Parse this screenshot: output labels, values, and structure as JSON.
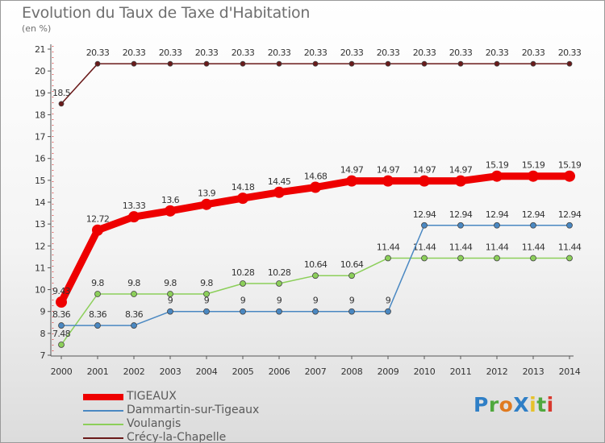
{
  "title": "Evolution du Taux de Taxe d'Habitation",
  "subtitle": "(en %)",
  "logo": {
    "text": "ProXiti",
    "letters": [
      {
        "ch": "P",
        "color": "#2f7fc6"
      },
      {
        "ch": "r",
        "color": "#4fa83d"
      },
      {
        "ch": "o",
        "color": "#e07a1f"
      },
      {
        "ch": "X",
        "color": "#2f7fc6"
      },
      {
        "ch": "i",
        "color": "#e6c12a"
      },
      {
        "ch": "t",
        "color": "#4fa83d"
      },
      {
        "ch": "i",
        "color": "#d83a2e"
      }
    ]
  },
  "chart_data": {
    "type": "line",
    "x": [
      2000,
      2001,
      2002,
      2003,
      2004,
      2005,
      2006,
      2007,
      2008,
      2009,
      2010,
      2011,
      2012,
      2013,
      2014
    ],
    "ylim": [
      7,
      21
    ],
    "yticks": [
      7,
      8,
      9,
      10,
      11,
      12,
      13,
      14,
      15,
      16,
      17,
      18,
      19,
      20,
      21
    ],
    "grid": false,
    "legend_position": "bottom-left",
    "series": [
      {
        "name": "Crécy-la-Chapelle",
        "color": "#6a1a1a",
        "width": 1.5,
        "marker": 3,
        "values": [
          18.5,
          20.33,
          20.33,
          20.33,
          20.33,
          20.33,
          20.33,
          20.33,
          20.33,
          20.33,
          20.33,
          20.33,
          20.33,
          20.33,
          20.33
        ],
        "labels": [
          "18.5",
          "20.33",
          "20.33",
          "20.33",
          "20.33",
          "20.33",
          "20.33",
          "20.33",
          "20.33",
          "20.33",
          "20.33",
          "20.33",
          "20.33",
          "20.33",
          "20.33"
        ]
      },
      {
        "name": "Voulangis",
        "color": "#8ccf5a",
        "width": 1.5,
        "marker": 3.5,
        "values": [
          7.48,
          9.8,
          9.8,
          9.8,
          9.8,
          10.28,
          10.28,
          10.64,
          10.64,
          11.44,
          11.44,
          11.44,
          11.44,
          11.44,
          11.44
        ],
        "labels": [
          "7.48",
          "9.8",
          "9.8",
          "9.8",
          "9.8",
          "10.28",
          "10.28",
          "10.64",
          "10.64",
          "11.44",
          "11.44",
          "11.44",
          "11.44",
          "11.44",
          "11.44"
        ]
      },
      {
        "name": "Dammartin-sur-Tigeaux",
        "color": "#4a88c2",
        "width": 1.5,
        "marker": 3.5,
        "values": [
          8.36,
          8.36,
          8.36,
          9,
          9,
          9,
          9,
          9,
          9,
          9,
          12.94,
          12.94,
          12.94,
          12.94,
          12.94
        ],
        "labels": [
          "8.36",
          "8.36",
          "8.36",
          "9",
          "9",
          "9",
          "9",
          "9",
          "9",
          "9",
          "12.94",
          "12.94",
          "12.94",
          "12.94",
          "12.94"
        ]
      },
      {
        "name": "TIGEAUX",
        "color": "#ee0000",
        "width": 9,
        "marker": 7,
        "values": [
          9.43,
          12.72,
          13.33,
          13.6,
          13.9,
          14.18,
          14.45,
          14.68,
          14.97,
          14.97,
          14.97,
          14.97,
          15.19,
          15.19,
          15.19
        ],
        "labels": [
          "9.43",
          "12.72",
          "13.33",
          "13.6",
          "13.9",
          "14.18",
          "14.45",
          "14.68",
          "14.97",
          "14.97",
          "14.97",
          "14.97",
          "15.19",
          "15.19",
          "15.19"
        ]
      }
    ],
    "legend_order": [
      "TIGEAUX",
      "Dammartin-sur-Tigeaux",
      "Voulangis",
      "Crécy-la-Chapelle"
    ]
  }
}
